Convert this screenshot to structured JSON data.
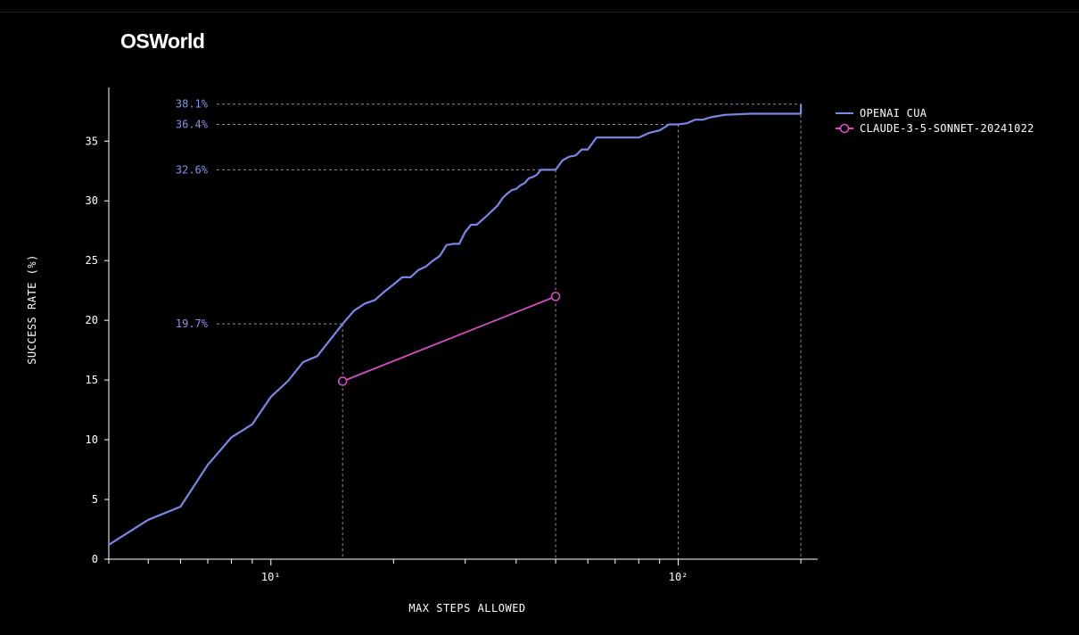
{
  "page": {
    "title": "OSWorld"
  },
  "chart_data": {
    "type": "line",
    "title": "OSWorld",
    "xlabel": "MAX STEPS ALLOWED",
    "ylabel": "SUCCESS RATE (%)",
    "xscale": "log",
    "xlim": [
      4,
      220
    ],
    "ylim": [
      0,
      39.5
    ],
    "yticks": [
      0,
      5,
      10,
      15,
      20,
      25,
      30,
      35
    ],
    "xtick_labels": [
      {
        "value": 10,
        "label": "10¹"
      },
      {
        "value": 100,
        "label": "10²"
      }
    ],
    "legend_position": "top-right",
    "colors": {
      "openai": "#7b86e6",
      "claude": "#d24fc2",
      "annotation": "#8a90e6",
      "axis": "#ffffff",
      "guide": "#8f8f8f"
    },
    "series": [
      {
        "name": "OPENAI CUA",
        "marker": "none",
        "x": [
          4,
          5,
          6,
          7,
          8,
          9,
          10,
          11,
          12,
          13,
          15,
          16,
          17,
          18,
          19,
          20,
          21,
          22,
          23,
          24,
          25,
          26,
          27,
          28,
          29,
          30,
          31,
          32,
          33,
          34,
          35,
          36,
          37,
          38,
          39,
          40,
          41,
          42,
          43,
          44,
          45,
          46,
          47,
          48,
          49,
          50,
          52,
          54,
          56,
          58,
          60,
          63,
          67,
          80,
          85,
          90,
          95,
          100,
          105,
          110,
          115,
          120,
          130,
          150,
          200,
          200
        ],
        "y": [
          1.2,
          3.3,
          4.4,
          7.9,
          10.2,
          11.3,
          13.6,
          14.9,
          16.5,
          17.0,
          19.7,
          20.8,
          21.4,
          21.7,
          22.4,
          23.0,
          23.6,
          23.6,
          24.2,
          24.5,
          25.0,
          25.4,
          26.3,
          26.4,
          26.4,
          27.4,
          28.0,
          28.0,
          28.4,
          28.8,
          29.2,
          29.6,
          30.2,
          30.6,
          30.9,
          31.0,
          31.3,
          31.5,
          31.9,
          32.0,
          32.2,
          32.6,
          32.6,
          32.6,
          32.6,
          32.6,
          33.4,
          33.7,
          33.8,
          34.3,
          34.3,
          35.3,
          35.3,
          35.3,
          35.7,
          35.9,
          36.4,
          36.4,
          36.5,
          36.8,
          36.8,
          37.0,
          37.2,
          37.3,
          37.3,
          38.1
        ]
      },
      {
        "name": "CLAUDE-3-5-SONNET-20241022",
        "marker": "circle",
        "x": [
          15,
          50
        ],
        "y": [
          14.9,
          22.0
        ]
      }
    ],
    "annotations": [
      {
        "label": "38.1%",
        "x": 200,
        "y": 38.1
      },
      {
        "label": "36.4%",
        "x": 100,
        "y": 36.4
      },
      {
        "label": "32.6%",
        "x": 50,
        "y": 32.6
      },
      {
        "label": "19.7%",
        "x": 15,
        "y": 19.7
      }
    ]
  }
}
